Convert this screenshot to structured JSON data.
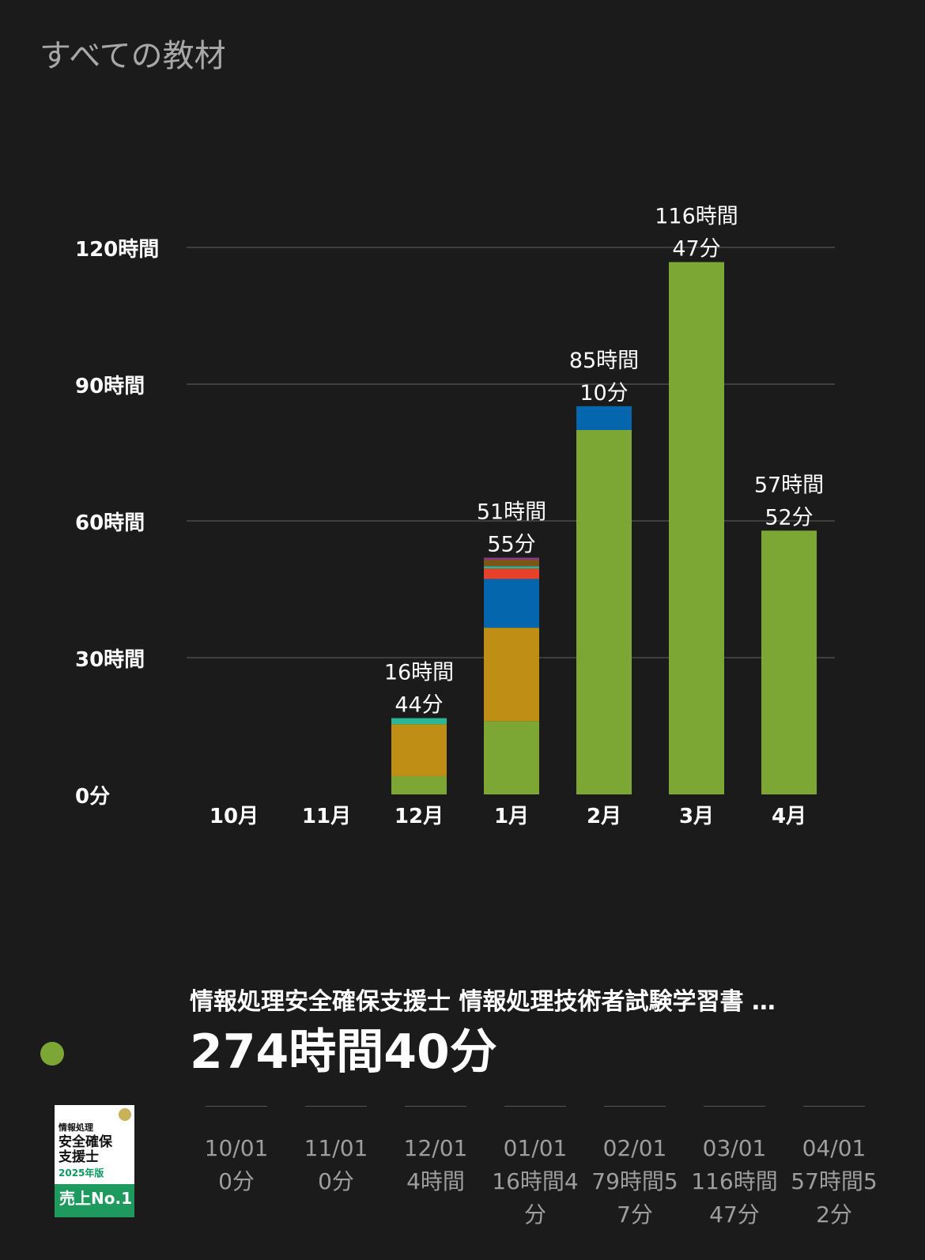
{
  "page_title": "すべての教材",
  "chart_data": {
    "type": "bar",
    "stacked": true,
    "categories": [
      "10月",
      "11月",
      "12月",
      "1月",
      "2月",
      "3月",
      "4月"
    ],
    "y_unit": "hours",
    "ylim": [
      0,
      120
    ],
    "yticks": [
      0,
      30,
      60,
      90,
      120
    ],
    "ytick_labels": [
      "0分",
      "30時間",
      "60時間",
      "90時間",
      "120時間"
    ],
    "grid": true,
    "series": [
      {
        "color": "#7ca734",
        "values": [
          0,
          0,
          4.0,
          16.07,
          79.95,
          116.78,
          57.87
        ]
      },
      {
        "color": "#bf8e15",
        "values": [
          0,
          0,
          11.4,
          20.5,
          0,
          0,
          0
        ]
      },
      {
        "color": "#0466ac",
        "values": [
          0,
          0,
          0,
          10.7,
          5.22,
          0,
          0
        ]
      },
      {
        "color": "#e8412b",
        "values": [
          0,
          0,
          0,
          2.3,
          0,
          0,
          0
        ]
      },
      {
        "color": "#2ab795",
        "values": [
          0,
          0,
          1.33,
          0.5,
          0,
          0,
          0
        ]
      },
      {
        "color": "#7e5418",
        "values": [
          0,
          0,
          0,
          1.5,
          0,
          0,
          0
        ]
      },
      {
        "color": "#8e3aa0",
        "values": [
          0,
          0,
          0,
          0.35,
          0,
          0,
          0
        ]
      }
    ],
    "totals": [
      0,
      0,
      16.73,
      51.92,
      85.17,
      116.78,
      57.87
    ],
    "total_labels": [
      null,
      null,
      [
        "16時間",
        "44分"
      ],
      [
        "51時間",
        "55分"
      ],
      [
        "85時間",
        "10分"
      ],
      [
        "116時間",
        "47分"
      ],
      [
        "57時間",
        "52分"
      ]
    ]
  },
  "item": {
    "color": "#7ca734",
    "title": "情報処理安全確保支援士 情報処理技術者試験学習書 …",
    "total": "274時間40分",
    "cover": {
      "line1": "情報処理",
      "line2": "安全確保",
      "line3": "支援士",
      "year": "2025年版",
      "badge": "売上No.1"
    },
    "monthly": [
      {
        "date": "10/01",
        "value": "0分"
      },
      {
        "date": "11/01",
        "value": "0分"
      },
      {
        "date": "12/01",
        "value": "4時間"
      },
      {
        "date": "01/01",
        "value": "16時間4分"
      },
      {
        "date": "02/01",
        "value": "79時間57分"
      },
      {
        "date": "03/01",
        "value": "116時間47分"
      },
      {
        "date": "04/01",
        "value": "57時間52分"
      }
    ]
  }
}
